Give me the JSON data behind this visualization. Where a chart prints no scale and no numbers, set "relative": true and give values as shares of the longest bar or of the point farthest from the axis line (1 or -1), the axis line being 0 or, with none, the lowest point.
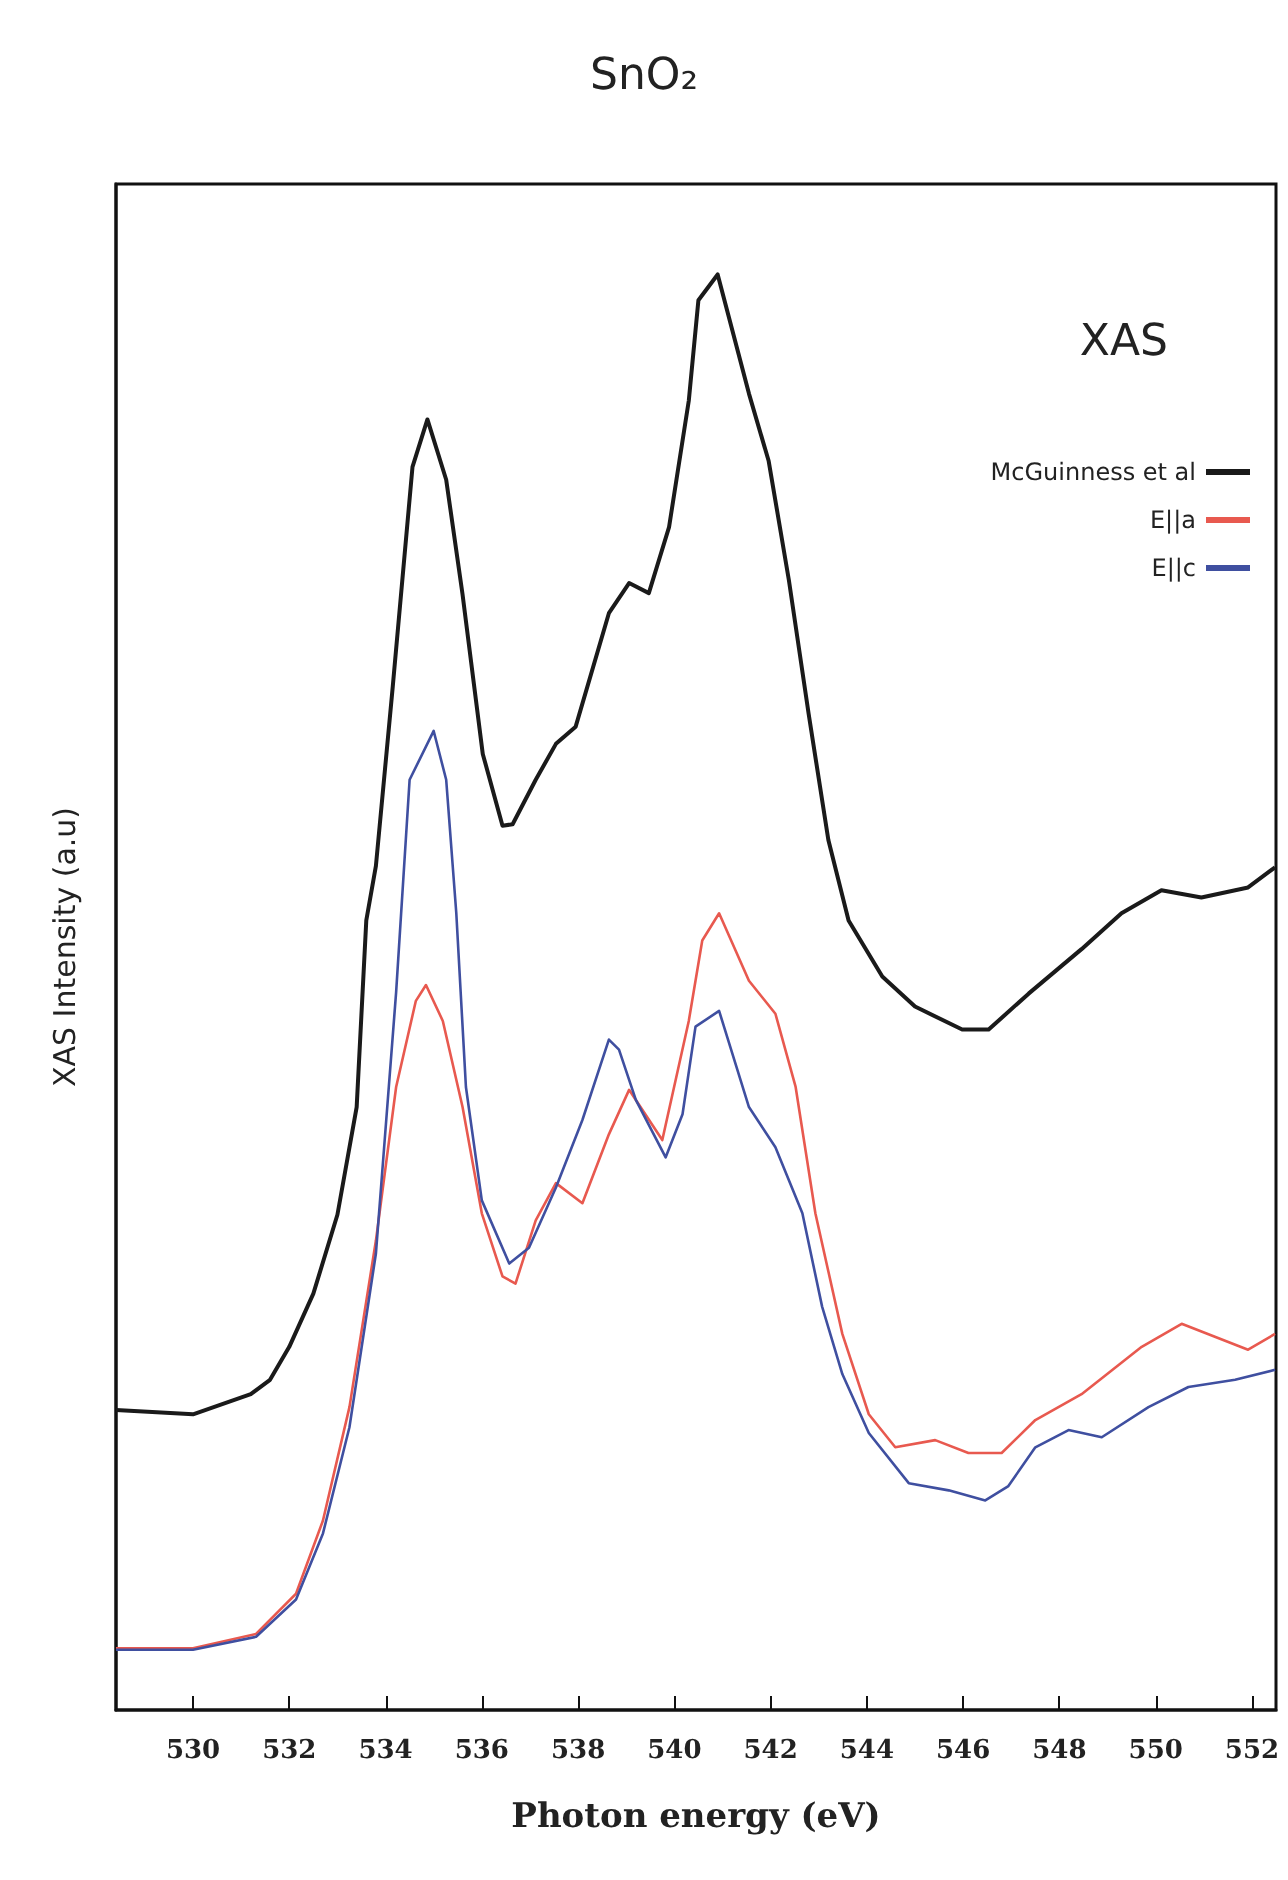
{
  "chart_data": {
    "type": "line",
    "title": "SnO₂",
    "xlabel": "Photon energy (eV)",
    "ylabel": "XAS Intensity (a.u)",
    "annotations": [
      "XAS"
    ],
    "relative": true,
    "xlim": [
      528.4,
      552.5
    ],
    "xticks": [
      530,
      532,
      534,
      536,
      538,
      540,
      542,
      544,
      546,
      548,
      550,
      552
    ],
    "legend": "top right",
    "grid": false,
    "marker": "none",
    "line_style": "solid",
    "series": [
      {
        "name": "McGuinness et al",
        "color": "#1a1a1a",
        "x": [
          528.4,
          530,
          531.2,
          531.6,
          532,
          532.5,
          533,
          533.4,
          533.6,
          533.8,
          534.15,
          534.56,
          534.87,
          535.26,
          535.6,
          536.02,
          536.43,
          536.64,
          537.12,
          537.54,
          537.95,
          538.64,
          539.06,
          539.47,
          539.89,
          540.3,
          540.5,
          540.9,
          541.55,
          541.96,
          542.38,
          542.79,
          543.2,
          543.62,
          544.32,
          545.0,
          545.98,
          546.53,
          547.36,
          548.46,
          549.29,
          550.12,
          550.95,
          551.92,
          552.48
        ],
        "values": [
          0.209,
          0.206,
          0.22,
          0.23,
          0.253,
          0.29,
          0.345,
          0.42,
          0.55,
          0.588,
          0.713,
          0.866,
          0.899,
          0.857,
          0.777,
          0.666,
          0.616,
          0.617,
          0.648,
          0.673,
          0.685,
          0.764,
          0.785,
          0.778,
          0.824,
          0.912,
          0.982,
          1.0,
          0.917,
          0.87,
          0.787,
          0.694,
          0.606,
          0.55,
          0.511,
          0.49,
          0.474,
          0.474,
          0.499,
          0.53,
          0.555,
          0.571,
          0.566,
          0.573,
          0.587
        ]
      },
      {
        "name": "E||a",
        "color": "#e8594f",
        "x": [
          528.4,
          530,
          531.31,
          532.14,
          532.7,
          533.25,
          533.8,
          534.22,
          534.63,
          534.84,
          535.19,
          535.6,
          536.0,
          536.43,
          536.7,
          537.12,
          537.54,
          538.09,
          538.64,
          539.06,
          539.75,
          540.3,
          540.58,
          540.93,
          541.55,
          542.1,
          542.52,
          542.93,
          543.49,
          544.04,
          544.59,
          545.42,
          546.11,
          546.8,
          547.5,
          548.46,
          549.71,
          550.54,
          551.23,
          551.92,
          552.48
        ],
        "values": [
          0.043,
          0.043,
          0.053,
          0.081,
          0.132,
          0.211,
          0.327,
          0.434,
          0.494,
          0.505,
          0.48,
          0.42,
          0.346,
          0.302,
          0.297,
          0.341,
          0.367,
          0.353,
          0.401,
          0.432,
          0.397,
          0.48,
          0.536,
          0.555,
          0.508,
          0.485,
          0.434,
          0.346,
          0.262,
          0.206,
          0.183,
          0.188,
          0.179,
          0.179,
          0.202,
          0.22,
          0.253,
          0.269,
          0.26,
          0.251,
          0.262
        ]
      },
      {
        "name": "E||c",
        "color": "#3f4fa0",
        "x": [
          528.4,
          530,
          531.31,
          532.14,
          532.7,
          533.25,
          533.8,
          534.22,
          534.5,
          535.0,
          535.26,
          535.47,
          535.67,
          536.0,
          536.57,
          536.98,
          537.54,
          538.09,
          538.64,
          538.85,
          539.2,
          539.82,
          540.17,
          540.44,
          540.93,
          541.55,
          542.1,
          542.66,
          543.07,
          543.49,
          544.04,
          544.87,
          545.7,
          546.46,
          546.94,
          547.5,
          548.19,
          548.88,
          549.85,
          550.68,
          551.65,
          552.48
        ],
        "values": [
          0.042,
          0.042,
          0.051,
          0.077,
          0.123,
          0.197,
          0.318,
          0.5,
          0.648,
          0.682,
          0.648,
          0.555,
          0.434,
          0.355,
          0.311,
          0.322,
          0.364,
          0.411,
          0.467,
          0.46,
          0.425,
          0.385,
          0.415,
          0.476,
          0.487,
          0.42,
          0.392,
          0.346,
          0.281,
          0.234,
          0.193,
          0.158,
          0.153,
          0.146,
          0.156,
          0.183,
          0.195,
          0.19,
          0.211,
          0.225,
          0.23,
          0.237
        ]
      }
    ]
  }
}
